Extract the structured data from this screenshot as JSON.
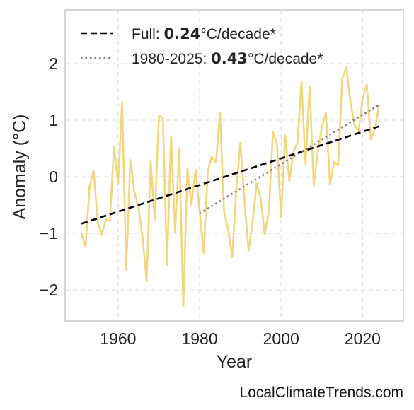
{
  "chart_data": {
    "type": "line",
    "xlabel": "Year",
    "ylabel": "Anomaly (°C)",
    "xlim": [
      1947,
      2030
    ],
    "ylim": [
      -2.55,
      2.95
    ],
    "xticks": [
      1960,
      1980,
      2000,
      2020
    ],
    "yticks": [
      -2,
      -1,
      0,
      1,
      2
    ],
    "grid": true,
    "legend_position": "top-left",
    "series": [
      {
        "kind": "observed",
        "color": "#f0d77f",
        "x": [
          1951,
          1952,
          1953,
          1954,
          1955,
          1956,
          1957,
          1958,
          1959,
          1960,
          1961,
          1962,
          1963,
          1964,
          1965,
          1966,
          1967,
          1968,
          1969,
          1970,
          1971,
          1972,
          1973,
          1974,
          1975,
          1976,
          1977,
          1978,
          1979,
          1980,
          1981,
          1982,
          1983,
          1984,
          1985,
          1986,
          1987,
          1988,
          1989,
          1990,
          1991,
          1992,
          1993,
          1994,
          1995,
          1996,
          1997,
          1998,
          1999,
          2000,
          2001,
          2002,
          2003,
          2004,
          2005,
          2006,
          2007,
          2008,
          2009,
          2010,
          2011,
          2012,
          2013,
          2014,
          2015,
          2016,
          2017,
          2018,
          2019,
          2020,
          2021,
          2022,
          2023,
          2024
        ],
        "y": [
          -1.0,
          -1.24,
          -0.17,
          0.11,
          -0.8,
          -1.03,
          -0.75,
          -0.78,
          0.53,
          -0.14,
          1.32,
          -1.65,
          0.3,
          -0.26,
          -0.55,
          -1.06,
          -1.85,
          0.27,
          -0.75,
          1.08,
          1.04,
          -1.56,
          0.72,
          -0.98,
          0.5,
          -2.3,
          0.15,
          -0.5,
          0.12,
          -0.6,
          -1.35,
          0.1,
          0.35,
          0.25,
          1.13,
          -0.62,
          -0.93,
          -1.42,
          -0.22,
          0.6,
          -0.4,
          -1.31,
          -0.8,
          -0.12,
          -0.4,
          -1.02,
          -0.6,
          0.79,
          0.57,
          -0.72,
          0.73,
          -0.07,
          0.43,
          0.6,
          1.69,
          0.21,
          1.6,
          -0.15,
          0.43,
          0.88,
          1.13,
          -0.13,
          0.26,
          0.2,
          1.73,
          1.94,
          1.33,
          0.92,
          0.8,
          1.39,
          1.63,
          0.66,
          0.84,
          1.25
        ]
      },
      {
        "kind": "trend",
        "name": "Full",
        "rate": "0.24",
        "unit": "°C/decade*",
        "color": "#000000",
        "style": "dashed",
        "x": [
          1951,
          2024
        ],
        "y": [
          -0.83,
          0.89
        ]
      },
      {
        "kind": "trend",
        "name": "1980-2025",
        "rate": "0.43",
        "unit": "°C/decade*",
        "color": "#7a7a7a",
        "style": "dotted",
        "x": [
          1980,
          2024
        ],
        "y": [
          -0.65,
          1.27
        ]
      }
    ]
  },
  "credit": "LocalClimateTrends.com"
}
